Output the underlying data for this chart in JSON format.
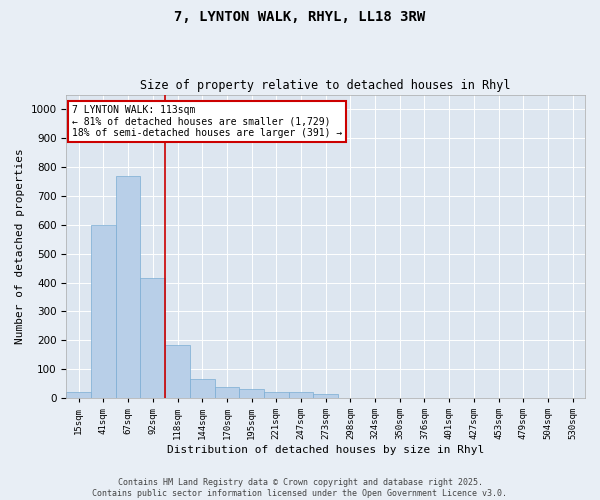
{
  "title": "7, LYNTON WALK, RHYL, LL18 3RW",
  "subtitle": "Size of property relative to detached houses in Rhyl",
  "xlabel": "Distribution of detached houses by size in Rhyl",
  "ylabel": "Number of detached properties",
  "bar_color": "#b8cfe8",
  "bar_edge_color": "#7aadd4",
  "background_color": "#dde6f0",
  "grid_color": "#ffffff",
  "fig_background_color": "#e8eef5",
  "categories": [
    "15sqm",
    "41sqm",
    "67sqm",
    "92sqm",
    "118sqm",
    "144sqm",
    "170sqm",
    "195sqm",
    "221sqm",
    "247sqm",
    "273sqm",
    "298sqm",
    "324sqm",
    "350sqm",
    "376sqm",
    "401sqm",
    "427sqm",
    "453sqm",
    "479sqm",
    "504sqm",
    "530sqm"
  ],
  "values": [
    20,
    600,
    770,
    415,
    185,
    65,
    40,
    30,
    20,
    20,
    15,
    0,
    0,
    0,
    0,
    0,
    0,
    0,
    0,
    0,
    0
  ],
  "ylim": [
    0,
    1050
  ],
  "yticks": [
    0,
    100,
    200,
    300,
    400,
    500,
    600,
    700,
    800,
    900,
    1000
  ],
  "property_line_color": "#cc0000",
  "property_line_bin": 3.5,
  "annotation_line1": "7 LYNTON WALK: 113sqm",
  "annotation_line2": "← 81% of detached houses are smaller (1,729)",
  "annotation_line3": "18% of semi-detached houses are larger (391) →",
  "annotation_box_color": "#cc0000",
  "footer_line1": "Contains HM Land Registry data © Crown copyright and database right 2025.",
  "footer_line2": "Contains public sector information licensed under the Open Government Licence v3.0."
}
